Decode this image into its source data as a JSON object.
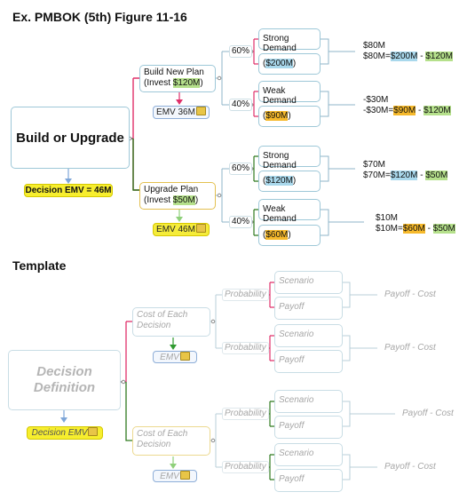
{
  "headings": {
    "example": "Ex. PMBOK (5th) Figure 11-16",
    "template": "Template"
  },
  "example": {
    "root": "Build or Upgrade",
    "decision_emv": "Decision EMV = 46M",
    "build": {
      "line1": "Build New Plan",
      "line2_prefix": "(Invest ",
      "line2_value": "$120M",
      "line2_suffix": ")",
      "emv": "EMV 36M",
      "strong_pct": "60%",
      "weak_pct": "40%",
      "strong_label": "Strong Demand",
      "strong_value_prefix": "(",
      "strong_value": "$200M",
      "strong_value_suffix": ")",
      "weak_label": "Weak Demand",
      "weak_value_prefix": "(",
      "weak_value": "$90M",
      "weak_value_suffix": ")",
      "strong_payoff_1": "$80M",
      "strong_payoff_2a": "$80M=",
      "strong_payoff_2b": "$200M",
      "strong_payoff_2c": " - ",
      "strong_payoff_2d": "$120M",
      "weak_payoff_1": "-$30M",
      "weak_payoff_2a": "-$30M=",
      "weak_payoff_2b": "$90M",
      "weak_payoff_2c": " - ",
      "weak_payoff_2d": "$120M"
    },
    "upgrade": {
      "line1": "Upgrade Plan",
      "line2_prefix": "(Invest ",
      "line2_value": "$50M",
      "line2_suffix": ")",
      "emv": "EMV 46M",
      "strong_pct": "60%",
      "weak_pct": "40%",
      "strong_label": "Strong Demand",
      "strong_value_prefix": "(",
      "strong_value": "$120M",
      "strong_value_suffix": ")",
      "weak_label": "Weak Demand",
      "weak_value_prefix": "(",
      "weak_value": "$60M",
      "weak_value_suffix": ")",
      "strong_payoff_1": "$70M",
      "strong_payoff_2a": "$70M=",
      "strong_payoff_2b": "$120M",
      "strong_payoff_2c": " - ",
      "strong_payoff_2d": "$50M",
      "weak_payoff_1": "$10M",
      "weak_payoff_2a": "$10M=",
      "weak_payoff_2b": "$60M",
      "weak_payoff_2c": " - ",
      "weak_payoff_2d": "$50M"
    }
  },
  "template": {
    "root": "Decision Definition",
    "decision_emv": "Decision EMV",
    "decision1": "Cost of Each Decision",
    "decision2": "Cost of Each Decision",
    "emv": "EMV",
    "probability": "Probability",
    "scenario": "Scenario",
    "payoff": "Payoff",
    "payoff_cost": "Payoff - Cost"
  },
  "colors": {
    "build_branch": "#e0306a",
    "upgrade_branch": "#2f7a1f",
    "connector": "#8fb5c8",
    "highlight_green": "#b5e08b",
    "highlight_orange": "#f6b92b",
    "highlight_blue": "#a9d8ec",
    "decision_yellow": "#f7ee2e"
  }
}
